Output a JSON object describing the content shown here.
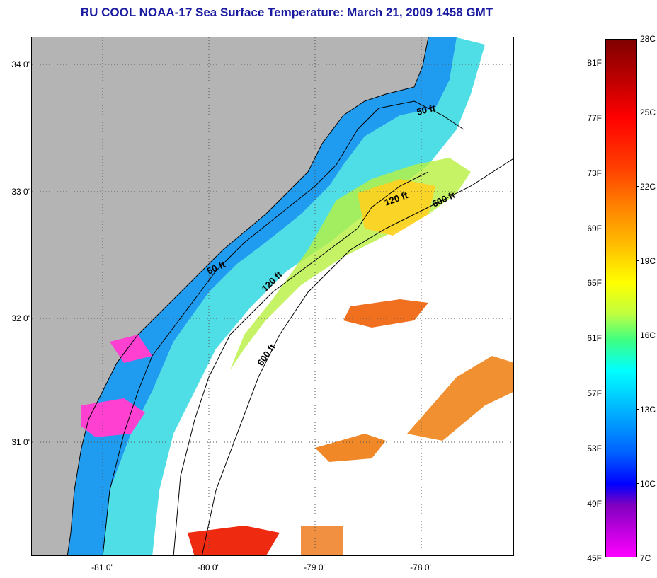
{
  "title": "RU COOL  NOAA-17  Sea Surface Temperature:  March 21, 2009 1458 GMT",
  "map": {
    "latitude_labels": [
      "34 0'",
      "33 0'",
      "32 0'",
      "31 0'"
    ],
    "longitude_labels": [
      "-81 0'",
      "-80 0'",
      "-79 0'",
      "-78 0'"
    ],
    "isobath_labels": [
      "50 ft",
      "120 ft",
      "600 ft",
      "50 ft",
      "120 ft",
      "600 ft"
    ],
    "colors": {
      "land": "#b4b4b4",
      "cloud": "#ffffff",
      "coast": "#000000"
    }
  },
  "colorbar": {
    "fahrenheit_labels": [
      "81F",
      "77F",
      "73F",
      "69F",
      "65F",
      "61F",
      "57F",
      "53F",
      "49F",
      "45F"
    ],
    "celsius_labels": [
      "28C",
      "25C",
      "22C",
      "19C",
      "16C",
      "13C",
      "10C",
      "7C"
    ]
  }
}
